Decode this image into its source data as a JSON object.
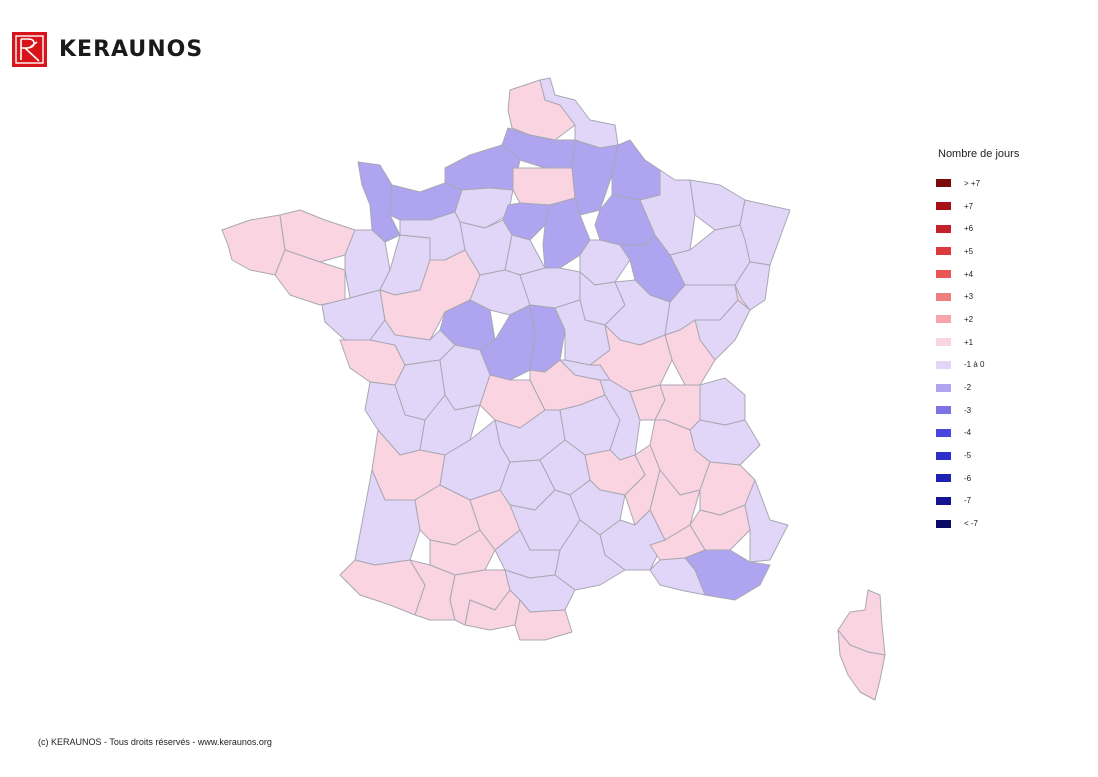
{
  "logo": {
    "text": "KERAUNOS",
    "color": "#d7141a"
  },
  "legend": {
    "title": "Nombre de jours",
    "items": [
      {
        "label": "> +7",
        "color": "#7b0a0a"
      },
      {
        "label": "+7",
        "color": "#a50f15"
      },
      {
        "label": "+6",
        "color": "#c4212b"
      },
      {
        "label": "+5",
        "color": "#dc3a3f"
      },
      {
        "label": "+4",
        "color": "#ea5558"
      },
      {
        "label": "+3",
        "color": "#ee7d80"
      },
      {
        "label": "+2",
        "color": "#f4a6ac"
      },
      {
        "label": "+1",
        "color": "#fad4e0"
      },
      {
        "label": "-1 à 0",
        "color": "#e1d6f7"
      },
      {
        "label": "-2",
        "color": "#aea4f0"
      },
      {
        "label": "-3",
        "color": "#7b73e6"
      },
      {
        "label": "-4",
        "color": "#4a44e0"
      },
      {
        "label": "-5",
        "color": "#2f2ed0"
      },
      {
        "label": "-6",
        "color": "#1f22b0"
      },
      {
        "label": "-7",
        "color": "#121490"
      },
      {
        "label": "< -7",
        "color": "#080a66"
      }
    ]
  },
  "map": {
    "region": "France",
    "classes": {
      "plus1": "#fad4e0",
      "zero": "#e1d6f7",
      "minus2": "#aea4f0"
    }
  },
  "footer": {
    "text": "(c) KERAUNOS - Tous droits réservés - www.keraunos.org"
  }
}
